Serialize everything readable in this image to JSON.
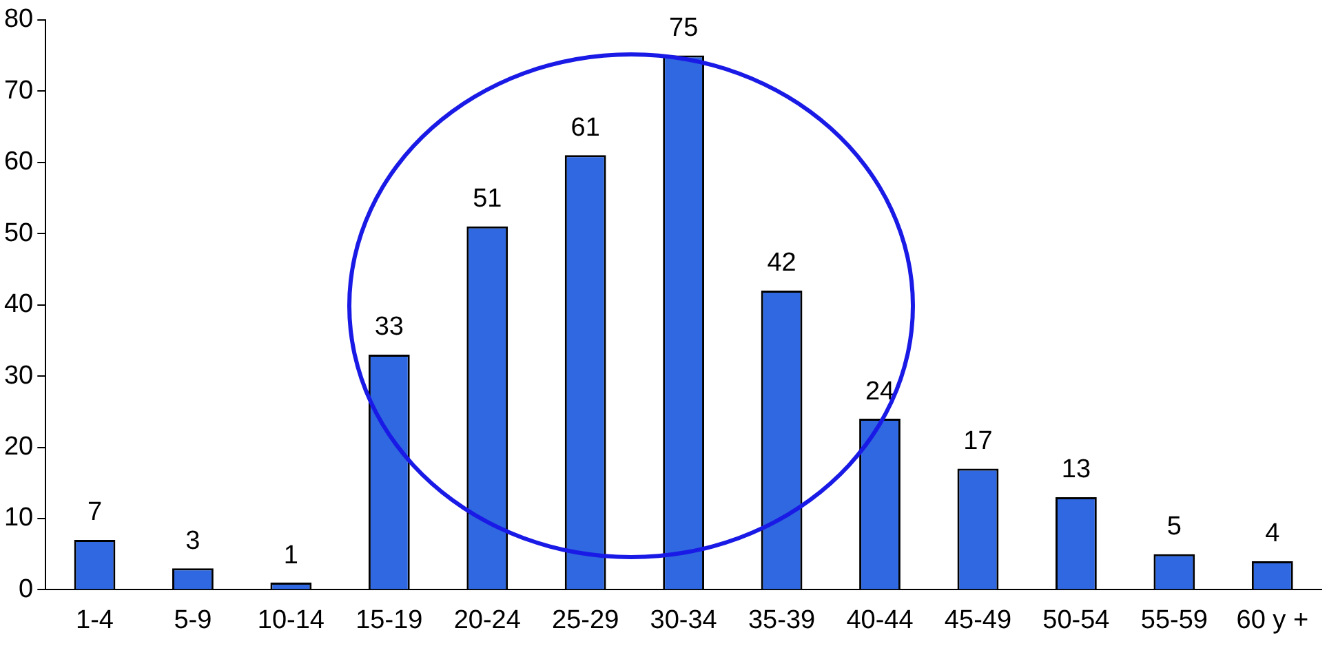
{
  "chart_data": {
    "type": "bar",
    "categories": [
      "1-4",
      "5-9",
      "10-14",
      "15-19",
      "20-24",
      "25-29",
      "30-34",
      "35-39",
      "40-44",
      "45-49",
      "50-54",
      "55-59",
      "60 y +"
    ],
    "values": [
      7,
      3,
      1,
      33,
      51,
      61,
      75,
      42,
      24,
      17,
      13,
      5,
      4
    ],
    "color": "#2f68e0",
    "ylim": [
      0,
      80
    ],
    "yticks": [
      0,
      10,
      20,
      30,
      40,
      50,
      60,
      70,
      80
    ],
    "grid": false,
    "legend": false,
    "data_labels": true
  }
}
